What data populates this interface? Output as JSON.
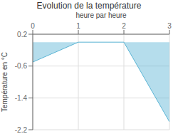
{
  "chart_data": {
    "type": "area",
    "title": "Evolution de la température",
    "xlabel": "heure par heure",
    "ylabel": "Température en °C",
    "x": [
      0,
      1,
      2,
      3
    ],
    "values": [
      -0.5,
      0.0,
      0.0,
      -2.0
    ],
    "color": "#5ab4d4",
    "xlim": [
      0,
      3
    ],
    "ylim": [
      -2.2,
      0.2
    ],
    "xticks": [
      0,
      1,
      2,
      3
    ],
    "yticks": [
      0.2,
      -0.6,
      -1.4,
      -2.2
    ],
    "grid": true
  }
}
